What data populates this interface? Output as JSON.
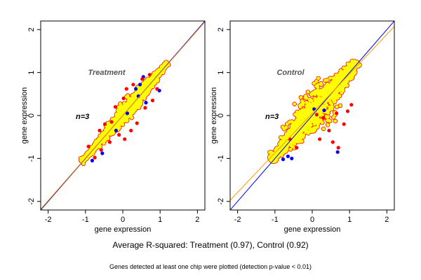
{
  "figure": {
    "summary": "Average R-squared: Treatment (0.97), Control (0.92)",
    "footnote": "Genes detected at least one chip were plotted (detection p-value < 0.01)"
  },
  "colors": {
    "background": "#ffffff",
    "detected_all": "#ffff00",
    "detected_some": "#ff0000",
    "detected_low": "#0000ff",
    "identity_line": "#0000ff",
    "fit_line": "#ff9900"
  },
  "chart_data": [
    {
      "type": "scatter",
      "title": "Treatment",
      "annotation": "n=3",
      "xlabel": "gene expression",
      "ylabel": "gene expression",
      "xlim": [
        -2.2,
        2.2
      ],
      "ylim": [
        -2.2,
        2.2
      ],
      "xticks": [
        -2,
        -1,
        0,
        1,
        2
      ],
      "yticks": [
        -2,
        -1,
        0,
        1,
        2
      ],
      "grid": false,
      "r_squared": 0.97,
      "point_cloud": {
        "x_range": [
          -1.1,
          1.2
        ],
        "y_range": [
          -1.1,
          1.3
        ],
        "center": [
          0.1,
          0.1
        ]
      },
      "series": [
        {
          "color": "#0000ff",
          "points": [
            [
              -0.82,
              -1.05
            ],
            [
              -0.55,
              -0.88
            ],
            [
              -0.18,
              -0.35
            ],
            [
              0.12,
              0.05
            ],
            [
              0.35,
              0.62
            ],
            [
              0.42,
              0.45
            ],
            [
              0.46,
              0.72
            ],
            [
              0.55,
              0.9
            ],
            [
              0.98,
              0.58
            ],
            [
              0.62,
              0.3
            ]
          ]
        },
        {
          "color": "#ff0000",
          "points": [
            [
              -0.92,
              -0.72
            ],
            [
              -0.75,
              -0.98
            ],
            [
              -0.62,
              -0.35
            ],
            [
              -0.58,
              -0.8
            ],
            [
              -0.48,
              -0.2
            ],
            [
              -0.35,
              -0.62
            ],
            [
              -0.3,
              -0.15
            ],
            [
              -0.1,
              -0.45
            ],
            [
              0.05,
              -0.55
            ],
            [
              0.1,
              0.62
            ],
            [
              0.28,
              0.72
            ],
            [
              0.38,
              -0.18
            ],
            [
              0.52,
              0.85
            ],
            [
              0.6,
              0.18
            ],
            [
              0.72,
              0.95
            ],
            [
              0.8,
              0.35
            ],
            [
              0.92,
              0.62
            ],
            [
              0.22,
              -0.35
            ],
            [
              -0.2,
              0.2
            ],
            [
              0.02,
              0.4
            ]
          ]
        }
      ],
      "lines": [
        {
          "name": "identity",
          "color": "#0000ff",
          "slope": 1.0,
          "intercept": 0.0
        },
        {
          "name": "fit",
          "color": "#ff9900",
          "slope": 0.99,
          "intercept": 0.0
        }
      ]
    },
    {
      "type": "scatter",
      "title": "Control",
      "annotation": "n=3",
      "xlabel": "gene expression",
      "ylabel": "gene expression",
      "xlim": [
        -2.2,
        2.2
      ],
      "ylim": [
        -2.2,
        2.2
      ],
      "xticks": [
        -2,
        -1,
        0,
        1,
        2
      ],
      "yticks": [
        -2,
        -1,
        0,
        1,
        2
      ],
      "grid": false,
      "r_squared": 0.92,
      "point_cloud": {
        "x_range": [
          -1.1,
          1.2
        ],
        "y_range": [
          -1.1,
          1.3
        ],
        "center": [
          0.1,
          0.15
        ]
      },
      "series": [
        {
          "color": "#0000ff",
          "points": [
            [
              -0.78,
              -1.02
            ],
            [
              -0.65,
              -0.95
            ],
            [
              -0.55,
              -1.0
            ],
            [
              0.05,
              0.15
            ],
            [
              0.32,
              0.12
            ],
            [
              0.68,
              -0.85
            ]
          ]
        },
        {
          "color": "#ff0000",
          "points": [
            [
              -0.6,
              -0.55
            ],
            [
              -0.42,
              -0.75
            ],
            [
              0.2,
              -0.55
            ],
            [
              0.45,
              -0.35
            ],
            [
              0.55,
              -0.62
            ],
            [
              0.7,
              -0.75
            ],
            [
              0.85,
              -0.2
            ],
            [
              0.95,
              0.1
            ],
            [
              1.05,
              0.25
            ],
            [
              0.65,
              0.05
            ],
            [
              0.3,
              -0.05
            ],
            [
              0.12,
              0.02
            ]
          ]
        }
      ],
      "lines": [
        {
          "name": "identity",
          "color": "#0000ff",
          "slope": 1.0,
          "intercept": 0.0
        },
        {
          "name": "fit",
          "color": "#ff9900",
          "slope": 0.92,
          "intercept": 0.05
        }
      ]
    }
  ]
}
